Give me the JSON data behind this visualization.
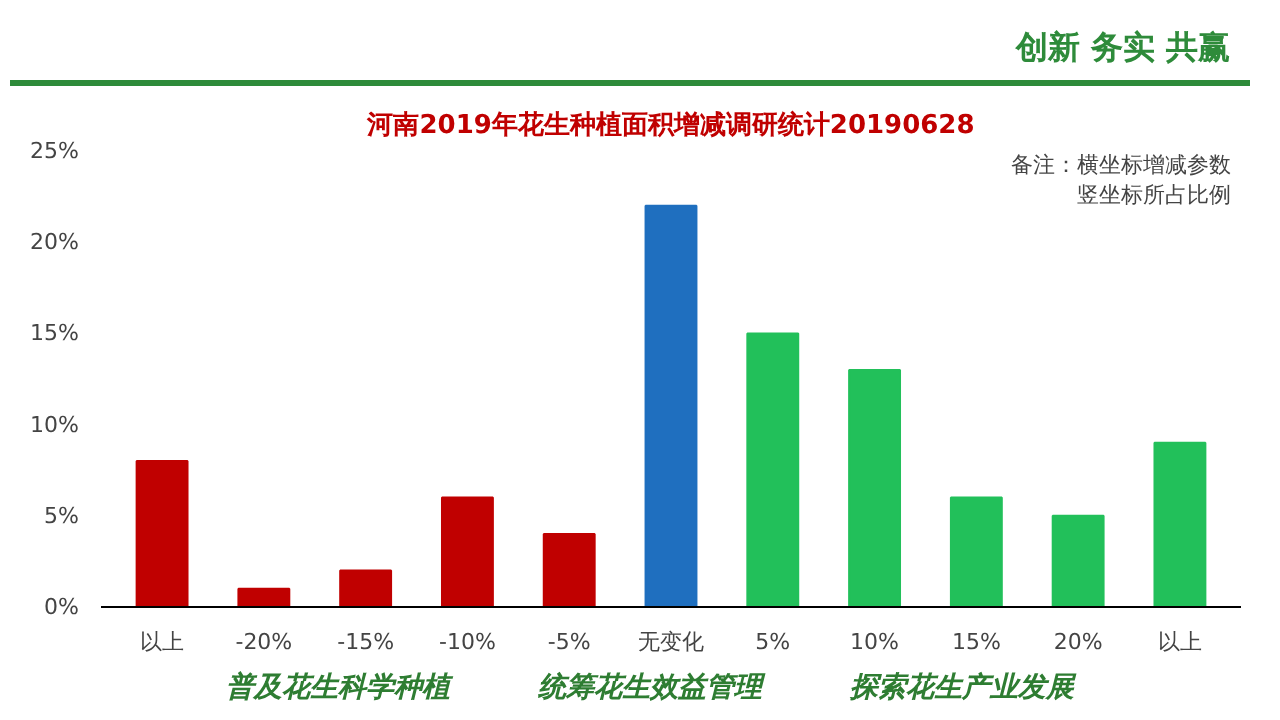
{
  "chart_data": {
    "type": "bar",
    "title": "河南2019年花生种植面积增减调研统计20190628",
    "categories": [
      "以上",
      "-20%",
      "-15%",
      "-10%",
      "-5%",
      "无变化",
      "5%",
      "10%",
      "15%",
      "20%",
      "以上"
    ],
    "values": [
      8,
      1,
      2,
      6,
      4,
      22,
      15,
      13,
      6,
      5,
      9
    ],
    "colors": [
      "#c00000",
      "#c00000",
      "#c00000",
      "#c00000",
      "#c00000",
      "#1f6fbf",
      "#22c05a",
      "#22c05a",
      "#22c05a",
      "#22c05a",
      "#22c05a"
    ],
    "ylim": [
      0,
      25
    ],
    "yticks": [
      {
        "value": 0,
        "label": "0%"
      },
      {
        "value": 5,
        "label": "5%"
      },
      {
        "value": 10,
        "label": "10%"
      },
      {
        "value": 15,
        "label": "15%"
      },
      {
        "value": 20,
        "label": "20%"
      },
      {
        "value": 25,
        "label": "25%"
      }
    ],
    "grid": false,
    "annotations": [
      "创新  务实  共赢",
      "备注：横坐标增减参数",
      "竖坐标所占比例",
      "普及花生科学种植",
      "统筹花生效益管理",
      "探索花生产业发展"
    ]
  }
}
